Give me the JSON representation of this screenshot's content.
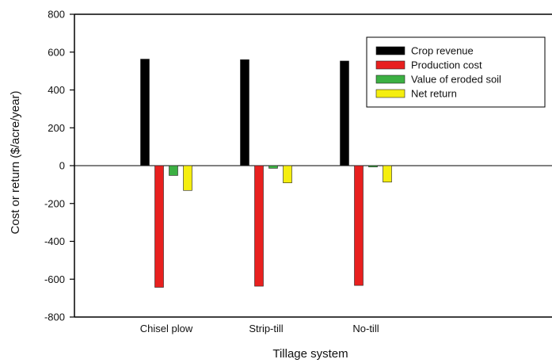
{
  "chart_data": {
    "type": "bar",
    "title": "",
    "xlabel": "Tillage system",
    "ylabel": "Cost or return ($/acre/year)",
    "ylim": [
      -800,
      800
    ],
    "yticks": [
      800,
      600,
      400,
      200,
      0,
      -200,
      -400,
      -600,
      -800
    ],
    "categories": [
      "Chisel plow",
      "Strip-till",
      "No-till"
    ],
    "series": [
      {
        "name": "Crop revenue",
        "color": "#000000",
        "values": [
          563,
          560,
          553
        ]
      },
      {
        "name": "Production cost",
        "color": "#e8201f",
        "values": [
          -643,
          -637,
          -633
        ]
      },
      {
        "name": "Value of eroded soil",
        "color": "#3cb043",
        "values": [
          -52,
          -14,
          -7
        ]
      },
      {
        "name": "Net return",
        "color": "#f5ee0f",
        "values": [
          -131,
          -91,
          -87
        ]
      }
    ],
    "legend_position": "top-right",
    "grid": false
  }
}
